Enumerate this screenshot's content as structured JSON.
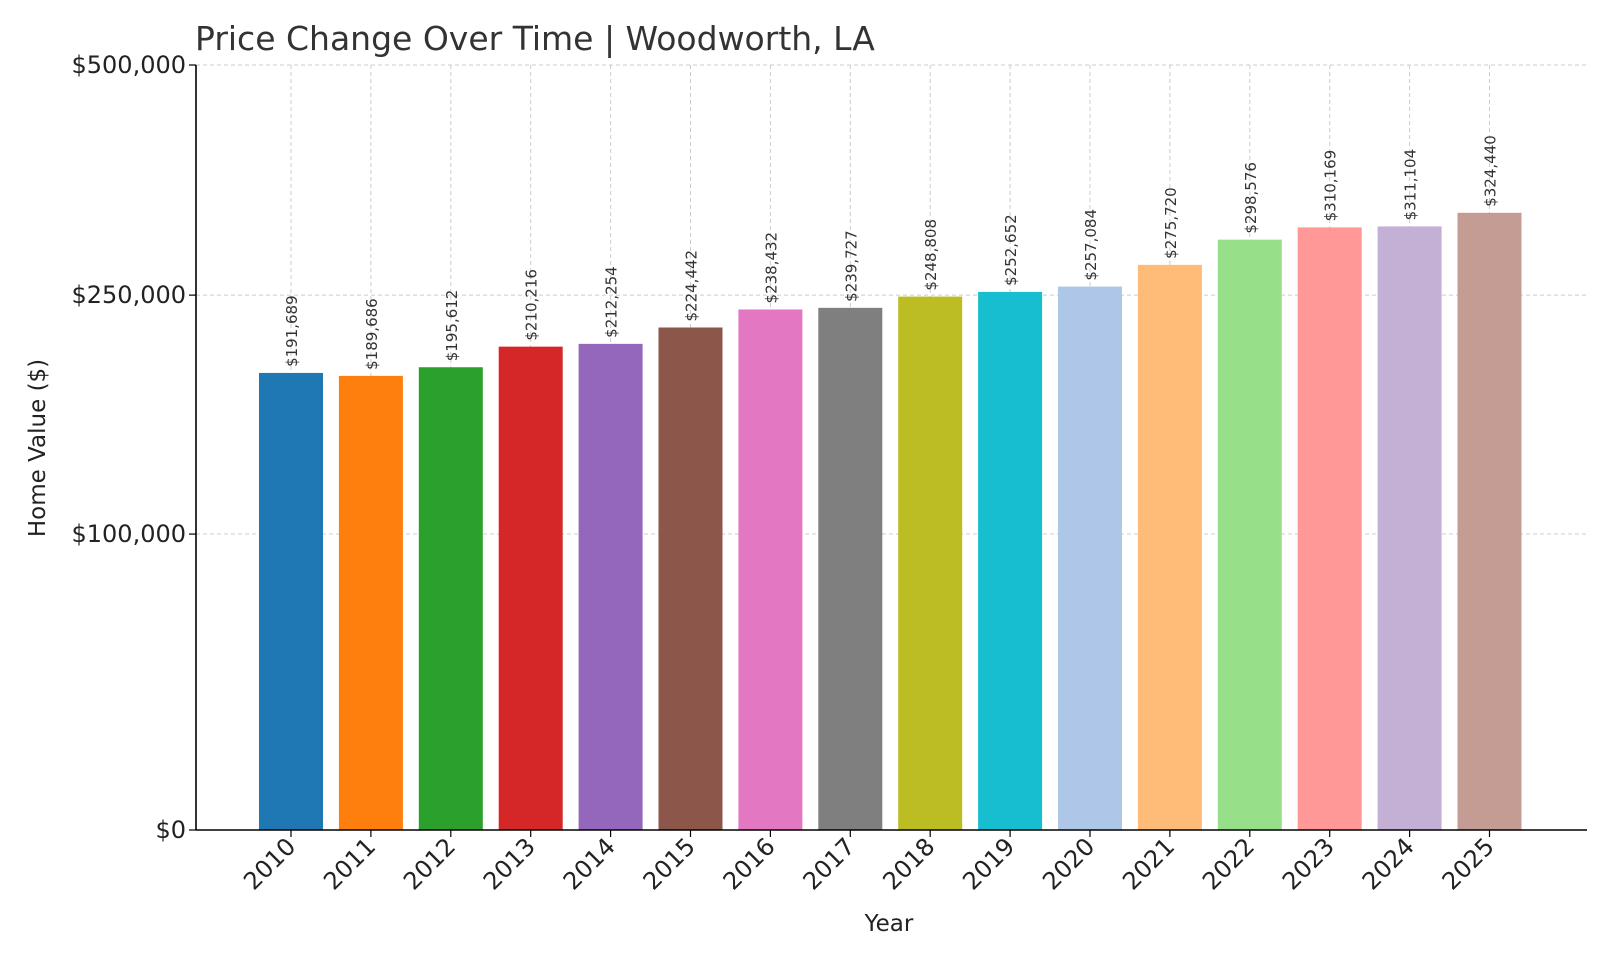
{
  "chart_data": {
    "type": "bar",
    "title": "Price Change Over Time | Woodworth, LA",
    "xlabel": "Year",
    "ylabel": "Home Value ($)",
    "ylim": [
      0,
      500000
    ],
    "y_scale": "symlog",
    "y_ticks": [
      0,
      100000,
      250000,
      500000
    ],
    "y_tick_labels": [
      "$0",
      "$100,000",
      "$250,000",
      "$500,000"
    ],
    "grid": true,
    "categories": [
      "2010",
      "2011",
      "2012",
      "2013",
      "2014",
      "2015",
      "2016",
      "2017",
      "2018",
      "2019",
      "2020",
      "2021",
      "2022",
      "2023",
      "2024",
      "2025"
    ],
    "values": [
      191689,
      189686,
      195612,
      210216,
      212254,
      224442,
      238432,
      239727,
      248808,
      252652,
      257084,
      275720,
      298576,
      310169,
      311104,
      324440
    ],
    "data_labels": [
      "$191,689",
      "$189,686",
      "$195,612",
      "$210,216",
      "$212,254",
      "$224,442",
      "$238,432",
      "$239,727",
      "$248,808",
      "$252,652",
      "$257,084",
      "$275,720",
      "$298,576",
      "$310,169",
      "$311,104",
      "$324,440"
    ],
    "colors": [
      "#1f77b4",
      "#ff7f0e",
      "#2ca02c",
      "#d62728",
      "#9467bd",
      "#8c564b",
      "#e377c2",
      "#7f7f7f",
      "#bcbd22",
      "#17becf",
      "#aec7e8",
      "#ffbb78",
      "#98df8a",
      "#ff9896",
      "#c5b0d5",
      "#c49c94"
    ]
  }
}
